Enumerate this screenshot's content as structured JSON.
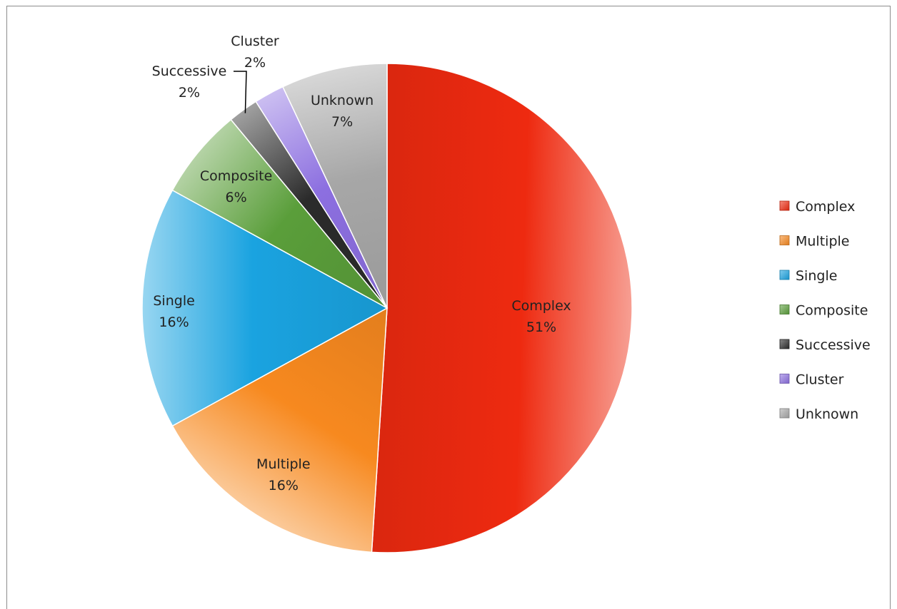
{
  "chart_data": {
    "type": "pie",
    "title": "",
    "categories": [
      "Complex",
      "Multiple",
      "Single",
      "Composite",
      "Successive",
      "Cluster",
      "Unknown"
    ],
    "values": [
      51,
      16,
      16,
      6,
      2,
      2,
      7
    ],
    "value_labels": [
      "51%",
      "16%",
      "16%",
      "6%",
      "2%",
      "2%",
      "7%"
    ],
    "colors": [
      "#ee2a10",
      "#f7891f",
      "#1aa3e0",
      "#5a9e3a",
      "#2b2b2b",
      "#8c6fe0",
      "#a7a7a7"
    ],
    "legend_position": "right",
    "start_angle": "12 o'clock, clockwise"
  }
}
